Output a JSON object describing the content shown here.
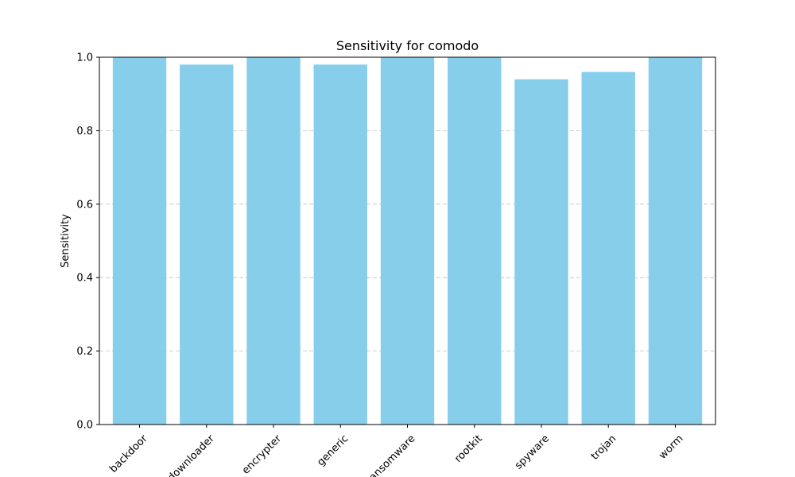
{
  "chart_data": {
    "type": "bar",
    "title": "Sensitivity for comodo",
    "xlabel": "",
    "ylabel": "Sensitivity",
    "categories": [
      "backdoor",
      "downloader",
      "encrypter",
      "generic",
      "ransomware",
      "rootkit",
      "spyware",
      "trojan",
      "worm"
    ],
    "values": [
      1.0,
      0.98,
      1.0,
      0.98,
      1.0,
      1.0,
      0.94,
      0.96,
      1.0
    ],
    "ylim": [
      0,
      1.0
    ],
    "yticks": [
      0.0,
      0.2,
      0.4,
      0.6,
      0.8,
      1.0
    ],
    "ytick_labels": [
      "0.0",
      "0.2",
      "0.4",
      "0.6",
      "0.8",
      "1.0"
    ],
    "bar_color": "#87CEEB",
    "grid": "y-dashed"
  }
}
